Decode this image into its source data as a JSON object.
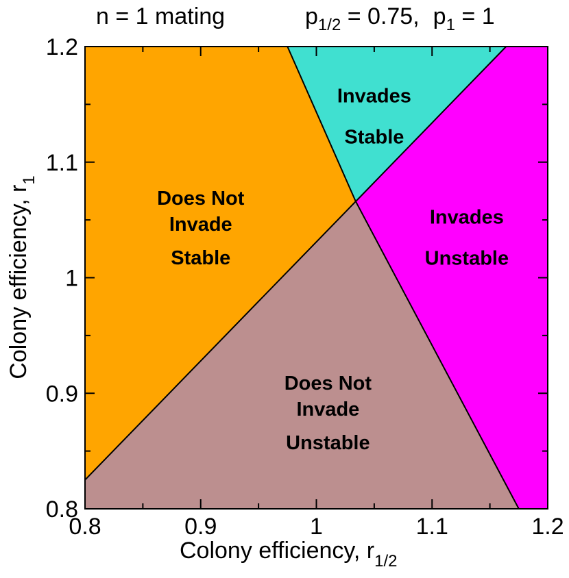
{
  "chart_data": {
    "type": "area",
    "title_left": "n = 1 mating",
    "title_right": {
      "p_half_symbol": "p",
      "p_half_subscript": "1/2",
      "p_half_value": " = 0.75,",
      "p_one_symbol": "p",
      "p_one_subscript": "1",
      "p_one_value": " = 1"
    },
    "xlabel": {
      "text": "Colony efficiency, r",
      "subscript": "1/2"
    },
    "ylabel": {
      "text": "Colony efficiency, r",
      "subscript": "1"
    },
    "xlim": [
      0.8,
      1.2
    ],
    "ylim": [
      0.8,
      1.2
    ],
    "x_major_ticks": [
      0.8,
      0.9,
      1.0,
      1.1,
      1.2
    ],
    "y_major_ticks": [
      0.8,
      0.9,
      1.0,
      1.1,
      1.2
    ],
    "x_tick_labels": [
      "0.8",
      "0.9",
      "1",
      "1.1",
      "1.2"
    ],
    "y_tick_labels": [
      "0.8",
      "0.9",
      "1",
      "1.1",
      "1.2"
    ],
    "minor_tick_step": 0.05,
    "grid": false,
    "boundaries": [
      {
        "name": "stability-boundary",
        "points": [
          [
            0.8,
            0.825
          ],
          [
            1.034,
            1.066
          ],
          [
            1.164,
            1.2
          ]
        ]
      },
      {
        "name": "invasion-boundary",
        "points": [
          [
            0.975,
            1.2
          ],
          [
            1.034,
            1.066
          ],
          [
            1.175,
            0.8
          ]
        ]
      }
    ],
    "regions": [
      {
        "key": "orange",
        "color": "#ffa500",
        "polygon": [
          [
            0.8,
            0.825
          ],
          [
            1.034,
            1.066
          ],
          [
            0.975,
            1.2
          ],
          [
            0.8,
            1.2
          ]
        ],
        "lines": [
          "Does Not",
          "Invade",
          "Stable"
        ],
        "label_at": [
          0.9,
          1.04
        ]
      },
      {
        "key": "cyan",
        "color": "#40e0d0",
        "polygon": [
          [
            0.975,
            1.2
          ],
          [
            1.034,
            1.066
          ],
          [
            1.164,
            1.2
          ]
        ],
        "lines": [
          "Invades",
          "Stable"
        ],
        "label_at": [
          1.05,
          1.14
        ]
      },
      {
        "key": "magenta",
        "color": "#ff00ff",
        "polygon": [
          [
            1.164,
            1.2
          ],
          [
            1.2,
            1.2
          ],
          [
            1.2,
            0.8
          ],
          [
            1.175,
            0.8
          ],
          [
            1.034,
            1.066
          ]
        ],
        "lines": [
          "Invades",
          "Unstable"
        ],
        "label_at": [
          1.13,
          1.035
        ]
      },
      {
        "key": "brown",
        "color": "#bc8f8f",
        "polygon": [
          [
            0.8,
            0.8
          ],
          [
            0.8,
            0.825
          ],
          [
            1.034,
            1.066
          ],
          [
            1.175,
            0.8
          ]
        ],
        "lines": [
          "Does Not",
          "Invade",
          "Unstable"
        ],
        "label_at": [
          1.01,
          0.88
        ]
      }
    ]
  }
}
